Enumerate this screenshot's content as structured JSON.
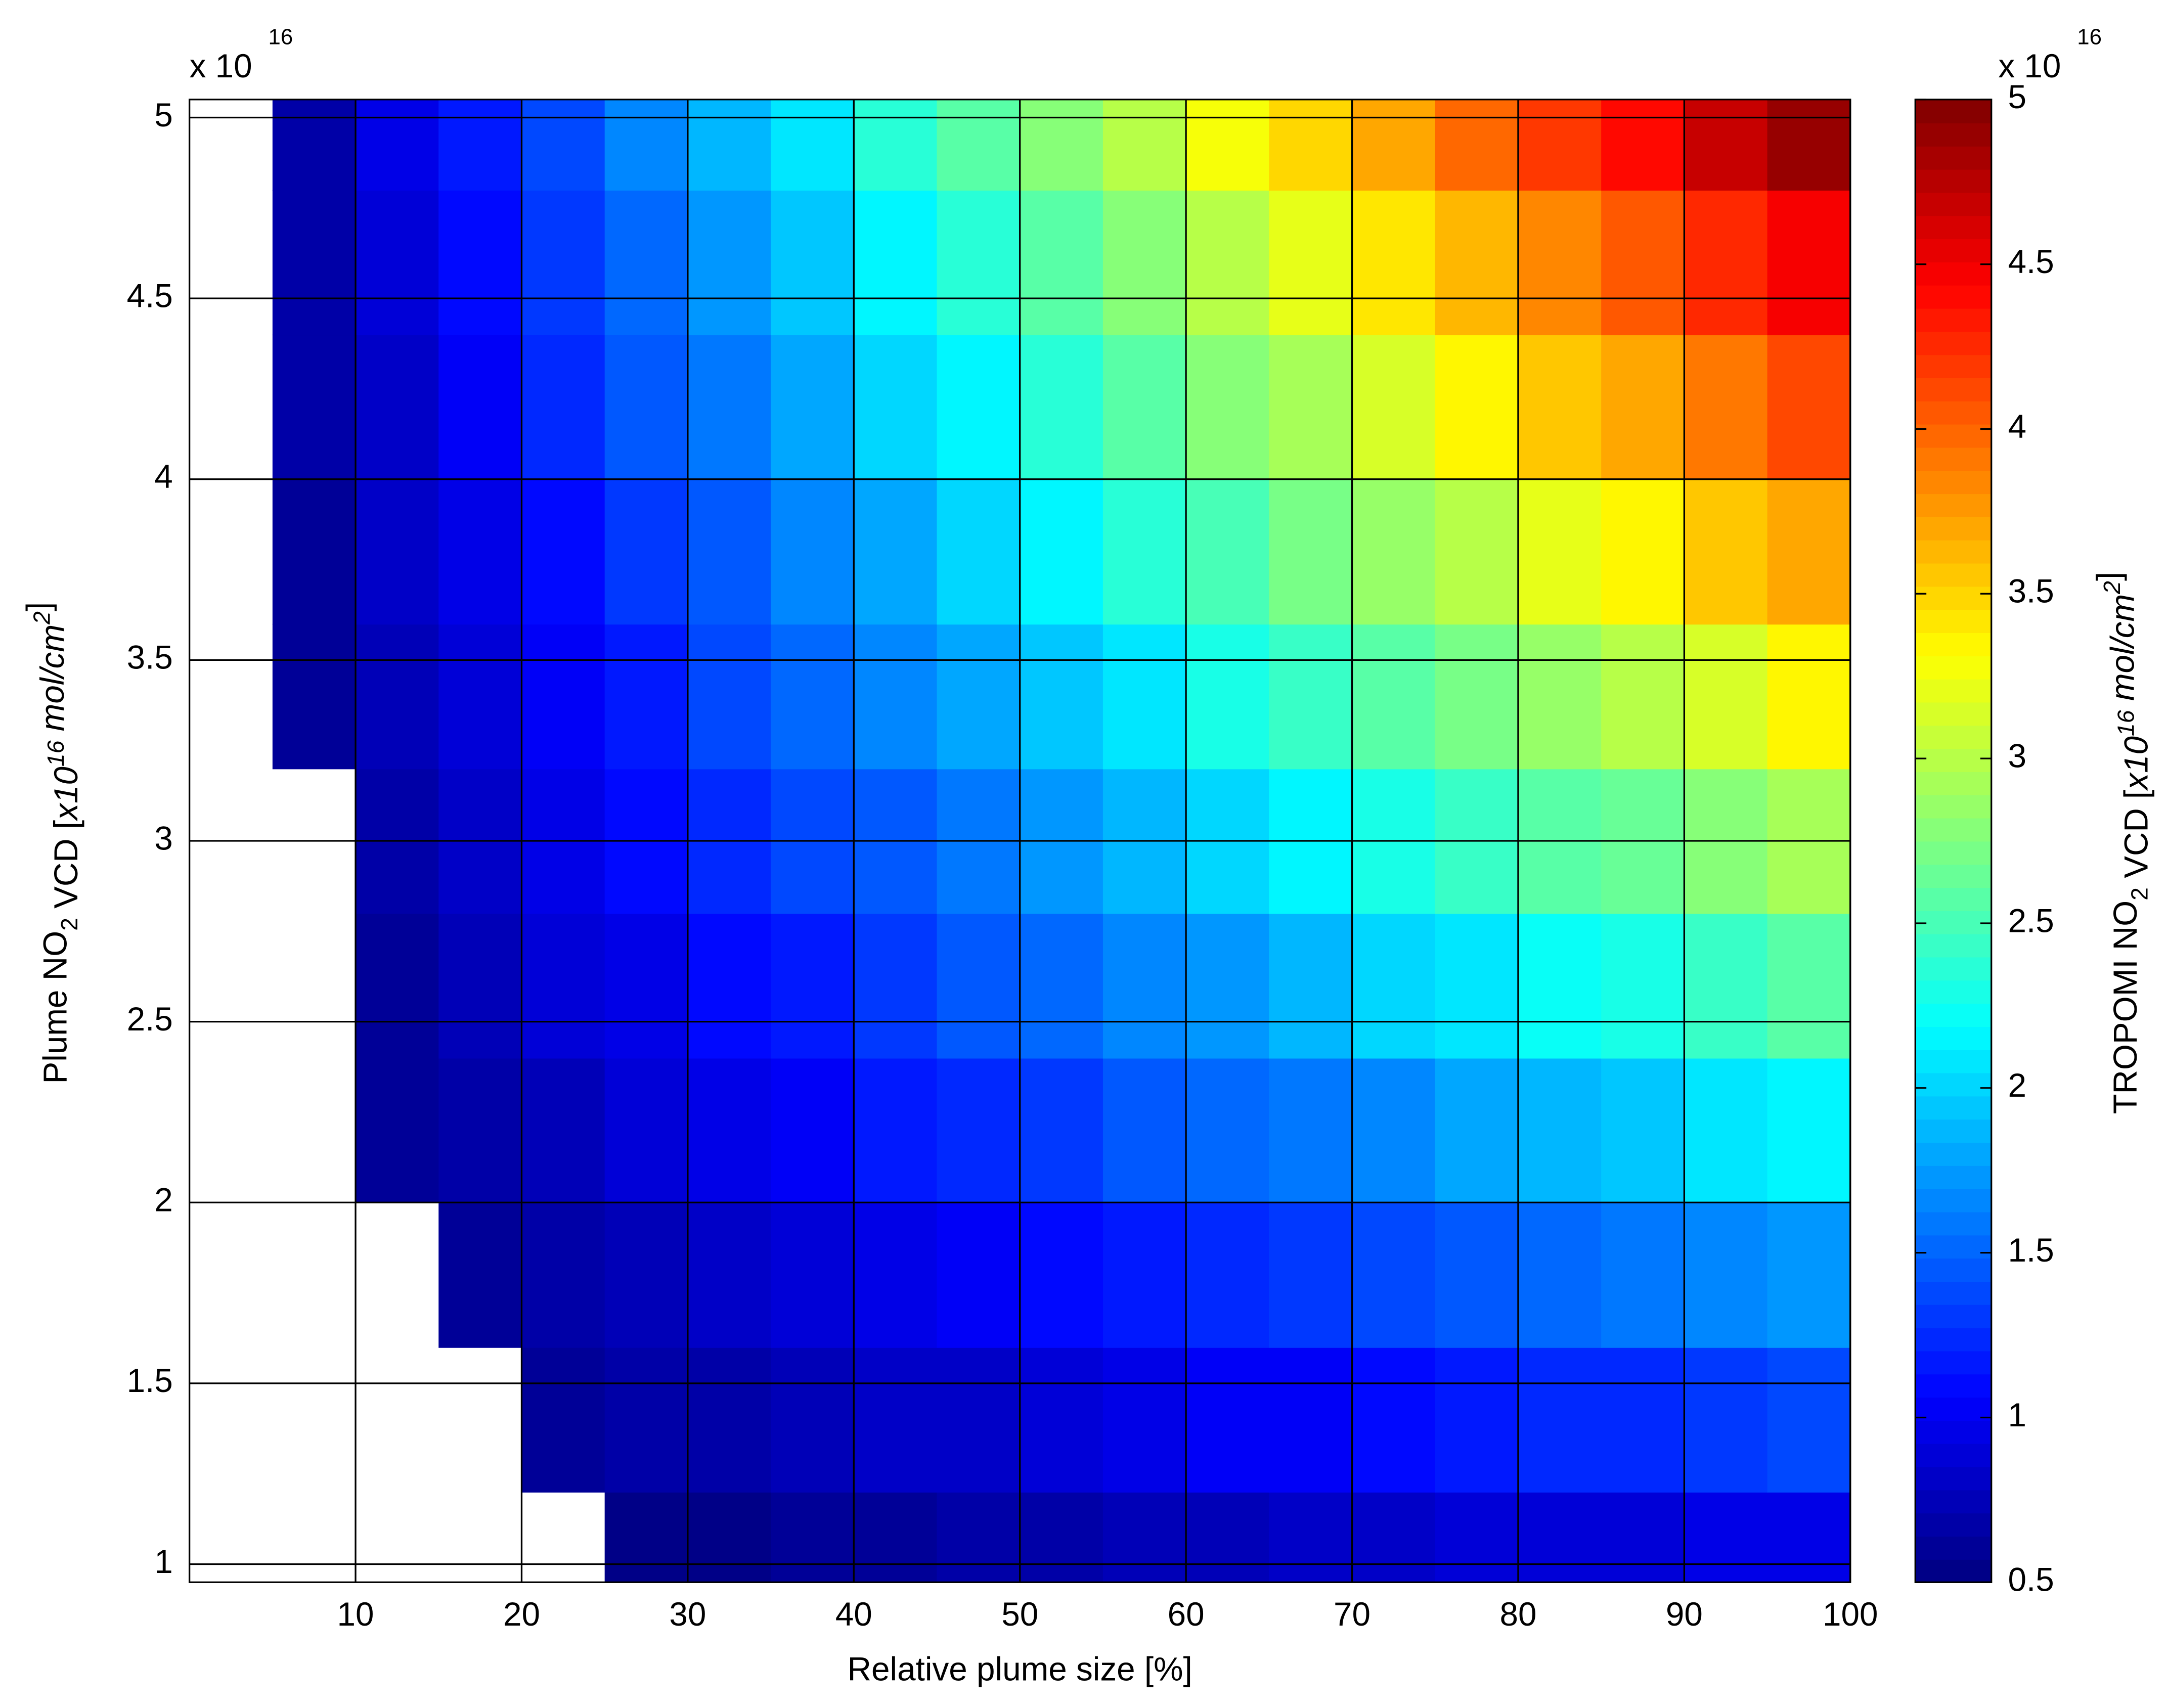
{
  "chart_data": {
    "type": "heatmap",
    "xlabel": "Relative plume size [%]",
    "ylabel_parts": [
      "Plume NO",
      "2",
      " VCD [",
      "x10",
      "16",
      " mol/cm",
      "2",
      "]"
    ],
    "colorbar_label_parts": [
      "TROPOMI NO",
      "2",
      " VCD [",
      "x10",
      "16",
      " mol/cm",
      "2",
      "]"
    ],
    "y_multiplier": {
      "base": "x 10",
      "exponent": "16"
    },
    "colorbar_multiplier": {
      "base": "x 10",
      "exponent": "16"
    },
    "colormap": "jet",
    "grid": true,
    "xlim": [
      0,
      100
    ],
    "xticks": [
      10,
      20,
      30,
      40,
      50,
      60,
      70,
      80,
      90,
      100
    ],
    "ylim": [
      0.95,
      5.05
    ],
    "yticks": [
      1,
      1.5,
      2,
      2.5,
      3,
      3.5,
      4,
      4.5,
      5
    ],
    "clim": [
      0.5,
      5
    ],
    "cticks": [
      0.5,
      1,
      1.5,
      2,
      2.5,
      3,
      3.5,
      4,
      4.5,
      5
    ],
    "x": [
      2.5,
      7.5,
      12.5,
      17.5,
      22.5,
      27.5,
      32.5,
      37.5,
      42.5,
      47.5,
      52.5,
      57.5,
      62.5,
      67.5,
      72.5,
      77.5,
      82.5,
      87.5,
      92.5,
      97.5
    ],
    "y": [
      1.0,
      1.4,
      1.8,
      2.2,
      2.6,
      3.0,
      3.4,
      3.8,
      4.2,
      4.6,
      5.0
    ],
    "values": [
      [
        null,
        null,
        null,
        null,
        null,
        0.54,
        0.57,
        0.6,
        0.63,
        0.66,
        0.7,
        0.73,
        0.76,
        0.79,
        0.82,
        0.86,
        0.89,
        0.92,
        0.95,
        0.98
      ],
      [
        null,
        null,
        null,
        null,
        0.59,
        0.65,
        0.7,
        0.75,
        0.8,
        0.85,
        0.91,
        0.96,
        1.01,
        1.06,
        1.11,
        1.17,
        1.22,
        1.27,
        1.32,
        1.37
      ],
      [
        null,
        null,
        null,
        0.61,
        0.68,
        0.76,
        0.83,
        0.9,
        0.97,
        1.04,
        1.12,
        1.19,
        1.26,
        1.33,
        1.4,
        1.48,
        1.55,
        1.62,
        1.69,
        1.76
      ],
      [
        null,
        null,
        0.59,
        0.68,
        0.77,
        0.87,
        0.96,
        1.05,
        1.14,
        1.23,
        1.33,
        1.42,
        1.51,
        1.6,
        1.69,
        1.79,
        1.88,
        1.97,
        2.06,
        2.15
      ],
      [
        null,
        null,
        0.64,
        0.75,
        0.86,
        0.98,
        1.09,
        1.2,
        1.31,
        1.42,
        1.54,
        1.65,
        1.76,
        1.87,
        1.98,
        2.1,
        2.21,
        2.32,
        2.43,
        2.54
      ],
      [
        null,
        null,
        0.69,
        0.82,
        0.95,
        1.09,
        1.22,
        1.35,
        1.48,
        1.61,
        1.75,
        1.88,
        2.01,
        2.14,
        2.27,
        2.41,
        2.54,
        2.67,
        2.8,
        2.93
      ],
      [
        null,
        0.59,
        0.74,
        0.89,
        1.04,
        1.2,
        1.35,
        1.5,
        1.65,
        1.8,
        1.96,
        2.11,
        2.26,
        2.41,
        2.56,
        2.72,
        2.87,
        3.02,
        3.17,
        3.32
      ],
      [
        null,
        0.62,
        0.79,
        0.96,
        1.13,
        1.31,
        1.48,
        1.65,
        1.82,
        1.99,
        2.17,
        2.34,
        2.51,
        2.68,
        2.85,
        3.03,
        3.2,
        3.37,
        3.54,
        3.71
      ],
      [
        null,
        0.65,
        0.84,
        1.03,
        1.22,
        1.42,
        1.61,
        1.8,
        1.99,
        2.18,
        2.38,
        2.57,
        2.76,
        2.95,
        3.14,
        3.34,
        3.53,
        3.72,
        3.91,
        4.1
      ],
      [
        null,
        0.68,
        0.89,
        1.1,
        1.31,
        1.53,
        1.74,
        1.95,
        2.16,
        2.37,
        2.59,
        2.8,
        3.01,
        3.22,
        3.43,
        3.65,
        3.86,
        4.07,
        4.28,
        4.49
      ],
      [
        null,
        0.71,
        0.94,
        1.17,
        1.4,
        1.64,
        1.87,
        2.1,
        2.33,
        2.56,
        2.8,
        3.03,
        3.26,
        3.49,
        3.72,
        3.96,
        4.19,
        4.42,
        4.65,
        4.88
      ]
    ]
  }
}
